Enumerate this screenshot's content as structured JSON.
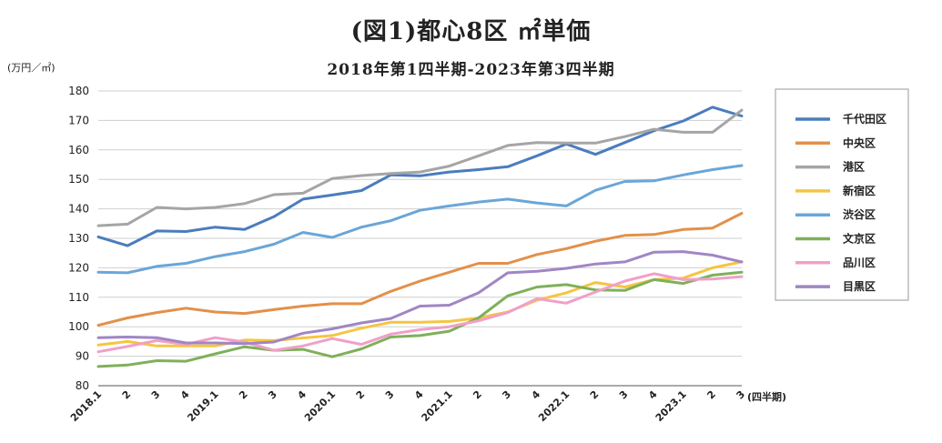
{
  "chart_data": {
    "type": "line",
    "title": "(図1)都心8区 ㎡単価",
    "subtitle": "2018年第1四半期-2023年第3四半期",
    "ylabel": "(万円／㎡)",
    "xlabel": "(四半期)",
    "ylim": [
      80,
      180
    ],
    "yticks": [
      80,
      90,
      100,
      110,
      120,
      130,
      140,
      150,
      160,
      170,
      180
    ],
    "grid": true,
    "legend_position": "right",
    "categories": [
      "2018.1",
      "2",
      "3",
      "4",
      "2019.1",
      "2",
      "3",
      "4",
      "2020.1",
      "2",
      "3",
      "4",
      "2021.1",
      "2",
      "3",
      "4",
      "2022.1",
      "2",
      "3",
      "4",
      "2023.1",
      "2",
      "3"
    ],
    "series": [
      {
        "name": "千代田区",
        "color": "#4a7dbd",
        "values": [
          130.5,
          127.5,
          132.5,
          132.3,
          133.8,
          133.0,
          137.3,
          143.3,
          144.7,
          146.2,
          151.5,
          151.2,
          152.5,
          153.3,
          154.3,
          158.0,
          162.0,
          158.5,
          162.5,
          166.5,
          169.8,
          174.5,
          171.5
        ]
      },
      {
        "name": "中央区",
        "color": "#e2904a",
        "values": [
          100.5,
          103.0,
          104.8,
          106.3,
          105.0,
          104.5,
          105.8,
          107.0,
          107.8,
          107.8,
          112.0,
          115.5,
          118.5,
          121.5,
          121.5,
          124.5,
          126.5,
          129.0,
          131.0,
          131.3,
          133.0,
          133.5,
          138.5
        ]
      },
      {
        "name": "港区",
        "color": "#a5a5a5",
        "values": [
          134.3,
          134.8,
          140.5,
          140.0,
          140.5,
          141.8,
          144.8,
          145.3,
          150.3,
          151.3,
          152.0,
          152.5,
          154.5,
          158.0,
          161.5,
          162.5,
          162.3,
          162.3,
          164.5,
          167.0,
          166.0,
          166.0,
          173.5
        ]
      },
      {
        "name": "新宿区",
        "color": "#f5c542",
        "values": [
          93.8,
          95.0,
          93.5,
          93.5,
          93.5,
          95.5,
          95.3,
          96.2,
          97.0,
          99.5,
          101.5,
          101.5,
          101.8,
          103.0,
          105.0,
          109.0,
          111.5,
          115.0,
          113.5,
          116.0,
          116.5,
          120.0,
          122.0
        ]
      },
      {
        "name": "渋谷区",
        "color": "#6aa6d8",
        "values": [
          118.5,
          118.3,
          120.5,
          121.5,
          123.8,
          125.5,
          128.0,
          132.0,
          130.3,
          133.8,
          136.0,
          139.5,
          141.0,
          142.3,
          143.3,
          142.0,
          141.0,
          146.3,
          149.3,
          149.5,
          151.5,
          153.3,
          154.7
        ]
      },
      {
        "name": "文京区",
        "color": "#7fb05a",
        "values": [
          86.5,
          87.0,
          88.5,
          88.3,
          90.8,
          93.2,
          92.0,
          92.3,
          89.8,
          92.5,
          96.5,
          97.0,
          98.5,
          103.0,
          110.5,
          113.5,
          114.3,
          112.5,
          112.3,
          116.0,
          114.7,
          117.5,
          118.5
        ]
      },
      {
        "name": "品川区",
        "color": "#f0a0c8",
        "values": [
          91.5,
          93.3,
          95.3,
          94.0,
          96.3,
          94.8,
          92.0,
          93.5,
          96.0,
          94.0,
          97.5,
          99.0,
          100.0,
          102.0,
          104.8,
          109.5,
          108.0,
          111.8,
          115.5,
          118.0,
          116.0,
          116.2,
          117.0
        ]
      },
      {
        "name": "目黒区",
        "color": "#a086c4",
        "values": [
          96.3,
          96.5,
          96.3,
          94.5,
          94.5,
          94.3,
          94.8,
          97.8,
          99.3,
          101.3,
          102.8,
          107.0,
          107.3,
          111.5,
          118.3,
          118.8,
          119.8,
          121.3,
          122.0,
          125.3,
          125.5,
          124.3,
          122.0
        ]
      }
    ]
  }
}
